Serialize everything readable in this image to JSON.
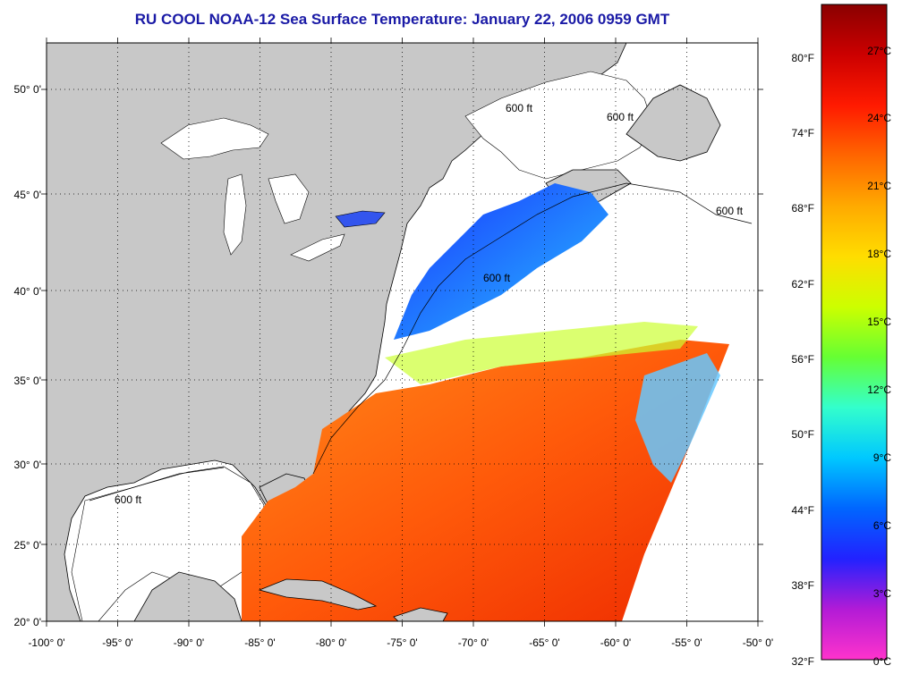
{
  "title": "RU COOL  NOAA-12  Sea Surface Temperature:  January 22, 2006 0959 GMT",
  "map": {
    "longitude_labels": [
      "-100° 0'",
      "-95° 0'",
      "-90° 0'",
      "-85° 0'",
      "-80° 0'",
      "-75° 0'",
      "-70° 0'",
      "-65° 0'",
      "-60° 0'",
      "-55° 0'",
      "-50° 0'"
    ],
    "latitude_labels": [
      "50° 0'",
      "45° 0'",
      "40° 0'",
      "35° 0'",
      "30° 0'",
      "25° 0'",
      "20° 0'"
    ],
    "contour_labels": [
      "600 ft",
      "600 ft",
      "600 ft",
      "600 ft",
      "600 ft"
    ],
    "colors": {
      "land": "#c8c8c8",
      "no_data": "#ffffff",
      "graticule": "#000000"
    }
  },
  "colorbar": {
    "fahrenheit_labels": [
      "80°F",
      "74°F",
      "68°F",
      "62°F",
      "56°F",
      "50°F",
      "44°F",
      "38°F",
      "32°F"
    ],
    "celsius_labels": [
      "27°C",
      "24°C",
      "21°C",
      "18°C",
      "15°C",
      "12°C",
      "9°C",
      "6°C",
      "3°C",
      "0°C"
    ],
    "colors": [
      "#ff33cc",
      "#b21bd6",
      "#2222ff",
      "#0066ff",
      "#00c8ff",
      "#33ffcc",
      "#66ff33",
      "#ccff00",
      "#ffdd00",
      "#ffaa00",
      "#ff6600",
      "#ff1a00",
      "#cc0000",
      "#8a0000"
    ]
  }
}
